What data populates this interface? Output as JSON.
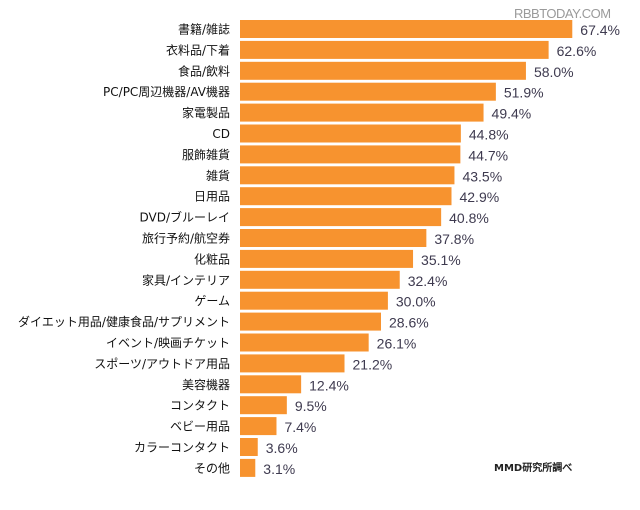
{
  "watermark": "RBBTODAY.COM",
  "source": "MMD研究所調べ",
  "colors": {
    "bar": "#f7932f",
    "label": "#111111",
    "value": "#3e3a4f"
  },
  "chart_data": {
    "type": "bar",
    "orientation": "horizontal",
    "categories": [
      "書籍/雑誌",
      "衣料品/下着",
      "食品/飲料",
      "PC/PC周辺機器/AV機器",
      "家電製品",
      "CD",
      "服飾雑貨",
      "雑貨",
      "日用品",
      "DVD/ブルーレイ",
      "旅行予約/航空券",
      "化粧品",
      "家具/インテリア",
      "ゲーム",
      "ダイエット用品/健康食品/サプリメント",
      "イベント/映画チケット",
      "スポーツ/アウトドア用品",
      "美容機器",
      "コンタクト",
      "ベビー用品",
      "カラーコンタクト",
      "その他"
    ],
    "values": [
      67.4,
      62.6,
      58.0,
      51.9,
      49.4,
      44.8,
      44.7,
      43.5,
      42.9,
      40.8,
      37.8,
      35.1,
      32.4,
      30.0,
      28.6,
      26.1,
      21.2,
      12.4,
      9.5,
      7.4,
      3.6,
      3.1
    ],
    "value_labels": [
      "67.4%",
      "62.6%",
      "58.0%",
      "51.9%",
      "49.4%",
      "44.8%",
      "44.7%",
      "43.5%",
      "42.9%",
      "40.8%",
      "37.8%",
      "35.1%",
      "32.4%",
      "30.0%",
      "28.6%",
      "26.1%",
      "21.2%",
      "12.4%",
      "9.5%",
      "7.4%",
      "3.6%",
      "3.1%"
    ],
    "unit": "%",
    "grid": false,
    "legend": "none"
  }
}
